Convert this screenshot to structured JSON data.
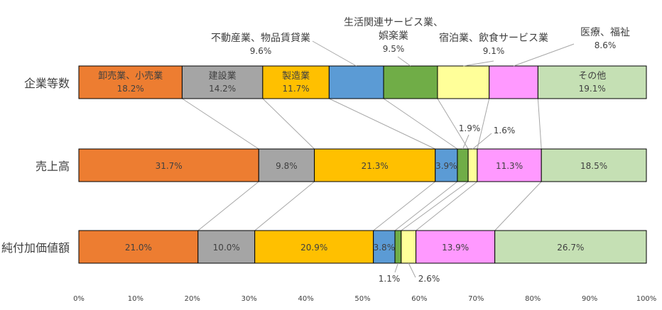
{
  "chart_data": {
    "type": "bar",
    "orientation": "horizontal",
    "stacked": "percent",
    "categories": [
      "企業等数",
      "売上高",
      "純付加価値額"
    ],
    "xlim": [
      0,
      100
    ],
    "x_ticks": [
      "0%",
      "10%",
      "20%",
      "30%",
      "40%",
      "50%",
      "60%",
      "70%",
      "80%",
      "90%",
      "100%"
    ],
    "grid": false,
    "legend": "none",
    "series": [
      {
        "name": "卸売業、小売業",
        "color": "#ED7D31",
        "values": [
          18.2,
          31.7,
          21.0
        ],
        "labels": [
          "18.2%",
          "31.7%",
          "21.0%"
        ]
      },
      {
        "name": "建設業",
        "color": "#A5A5A5",
        "values": [
          14.2,
          9.8,
          10.0
        ],
        "labels": [
          "14.2%",
          "9.8%",
          "10.0%"
        ]
      },
      {
        "name": "製造業",
        "color": "#FFC000",
        "values": [
          11.7,
          21.3,
          20.9
        ],
        "labels": [
          "11.7%",
          "21.3%",
          "20.9%"
        ]
      },
      {
        "name": "不動産業、物品賃貸業",
        "color": "#5B9BD5",
        "values": [
          9.6,
          3.9,
          3.8
        ],
        "labels": [
          "9.6%",
          "3.9%",
          "3.8%"
        ]
      },
      {
        "name": "生活関連サービス業、娯楽業",
        "color": "#70AD47",
        "values": [
          9.5,
          1.9,
          1.1
        ],
        "labels": [
          "9.5%",
          "1.9%",
          "1.1%"
        ]
      },
      {
        "name": "宿泊業、飲食サービス業",
        "color": "#FFFF99",
        "values": [
          9.1,
          1.6,
          2.6
        ],
        "labels": [
          "9.1%",
          "1.6%",
          "2.6%"
        ]
      },
      {
        "name": "医療、福祉",
        "color": "#FF99FF",
        "values": [
          8.6,
          11.3,
          13.9
        ],
        "labels": [
          "8.6%",
          "11.3%",
          "13.9%"
        ]
      },
      {
        "name": "その他",
        "color": "#C5E0B4",
        "values": [
          19.1,
          18.5,
          26.7
        ],
        "labels": [
          "19.1%",
          "18.5%",
          "26.7%"
        ]
      }
    ]
  }
}
